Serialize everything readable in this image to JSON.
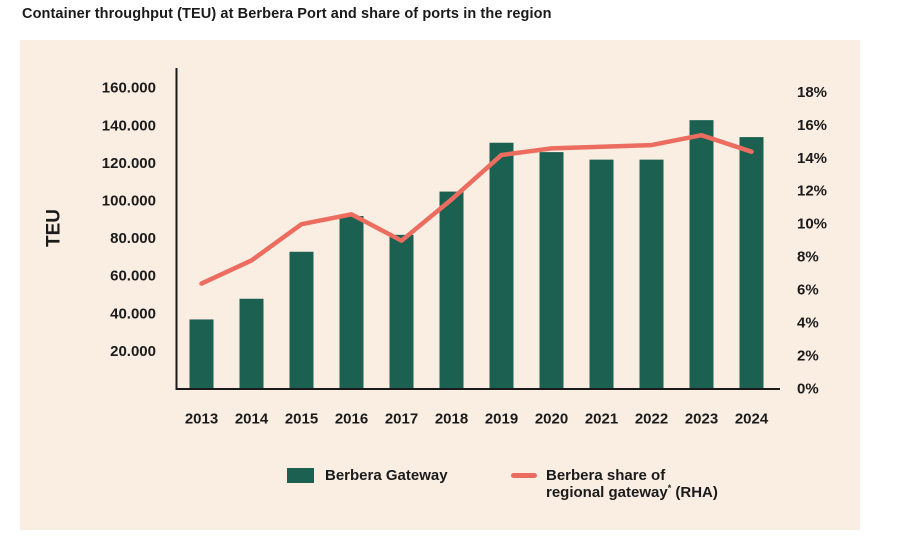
{
  "page": {
    "title": "Container throughput (TEU) at Berbera Port and share of ports in the region"
  },
  "colors": {
    "page_bg": "#FFFFFF",
    "panel_bg": "#FAEEE3",
    "bar": "#1C6052",
    "line": "#EC6D60",
    "axis": "#1B1B1B",
    "text": "#1B1B1B"
  },
  "legend": {
    "series1_label": "Berbera Gateway",
    "series2_line1": "Berbera share of",
    "series2_line2_prefix": "regional gateway",
    "series2_line2_sup": "*",
    "series2_line2_suffix": " (RHA)"
  },
  "chart_data": {
    "type": "bar",
    "combo": "bar + line (dual axis)",
    "title": "Container throughput (TEU) at Berbera Port and share of ports in the region",
    "grid": false,
    "legend_position": "bottom",
    "categories": [
      "2013",
      "2014",
      "2015",
      "2016",
      "2017",
      "2018",
      "2019",
      "2020",
      "2021",
      "2022",
      "2023",
      "2024"
    ],
    "series": [
      {
        "name": "Berbera Gateway",
        "type": "bar",
        "axis": "left",
        "unit": "TEU",
        "values": [
          37000,
          48000,
          73000,
          92000,
          82000,
          105000,
          131000,
          126000,
          122000,
          122000,
          143000,
          134000
        ]
      },
      {
        "name": "Berbera share of regional gateway* (RHA)",
        "type": "line",
        "axis": "right",
        "unit": "%",
        "values": [
          6.4,
          7.8,
          10.0,
          10.6,
          9.0,
          11.5,
          14.2,
          14.6,
          14.7,
          14.8,
          15.4,
          14.4
        ]
      }
    ],
    "left_axis": {
      "title": "TEU",
      "min": 0,
      "max": 170000,
      "tick_step": 20000,
      "ticks": [
        {
          "value": 20000,
          "label": "20.000"
        },
        {
          "value": 40000,
          "label": "40.000"
        },
        {
          "value": 60000,
          "label": "60.000"
        },
        {
          "value": 80000,
          "label": "80.000"
        },
        {
          "value": 100000,
          "label": "100.000"
        },
        {
          "value": 120000,
          "label": "120.000"
        },
        {
          "value": 140000,
          "label": "140.000"
        },
        {
          "value": 160000,
          "label": "160.000"
        }
      ]
    },
    "right_axis": {
      "title": "",
      "min": 0,
      "max": 18,
      "tick_step": 2,
      "ticks": [
        {
          "value": 0,
          "label": "0%"
        },
        {
          "value": 2,
          "label": "2%"
        },
        {
          "value": 4,
          "label": "4%"
        },
        {
          "value": 6,
          "label": "6%"
        },
        {
          "value": 8,
          "label": "8%"
        },
        {
          "value": 10,
          "label": "10%"
        },
        {
          "value": 12,
          "label": "12%"
        },
        {
          "value": 14,
          "label": "14%"
        },
        {
          "value": 16,
          "label": "16%"
        },
        {
          "value": 18,
          "label": "18%"
        }
      ]
    }
  }
}
